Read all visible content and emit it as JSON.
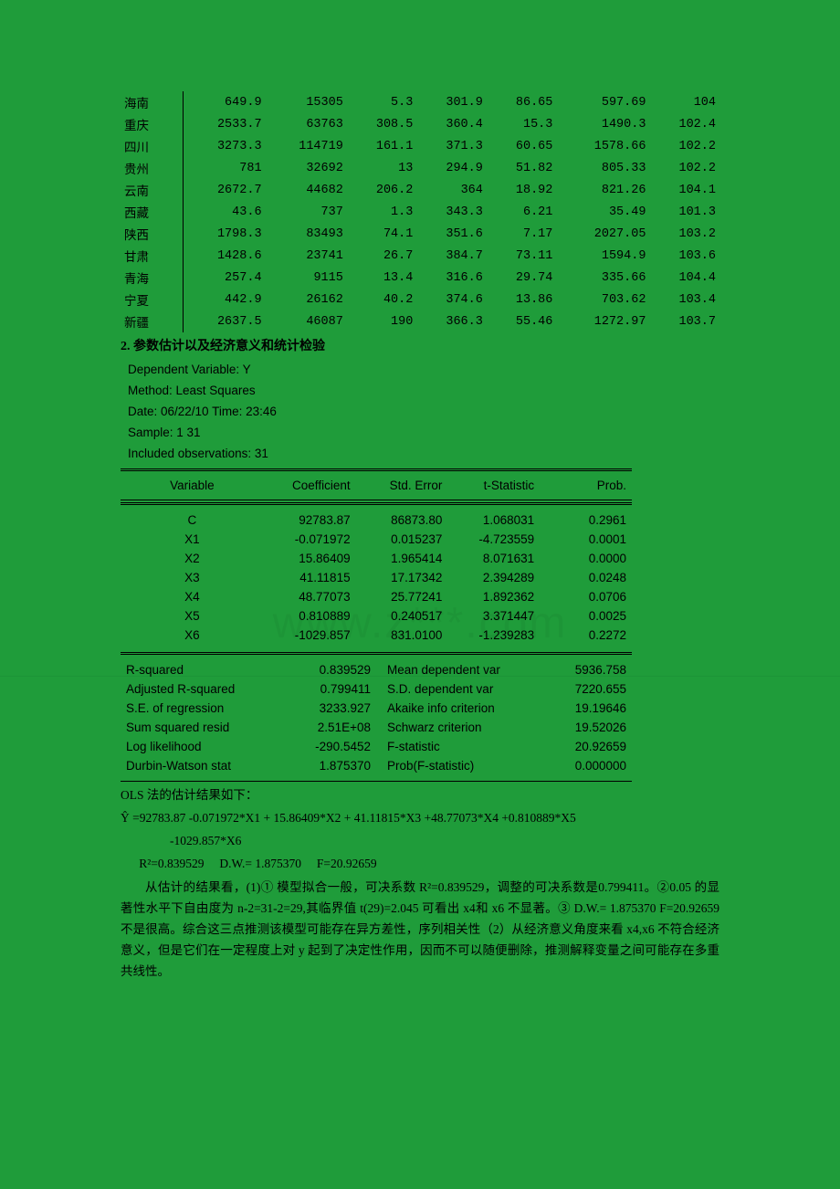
{
  "background_color": "#1f9c3a",
  "text_color": "#000000",
  "data_table": {
    "rows": [
      {
        "prov": "海南",
        "c1": "649.9",
        "c2": "15305",
        "c3": "5.3",
        "c4": "301.9",
        "c5": "86.65",
        "c6": "597.69",
        "c7": "104"
      },
      {
        "prov": "重庆",
        "c1": "2533.7",
        "c2": "63763",
        "c3": "308.5",
        "c4": "360.4",
        "c5": "15.3",
        "c6": "1490.3",
        "c7": "102.4"
      },
      {
        "prov": "四川",
        "c1": "3273.3",
        "c2": "114719",
        "c3": "161.1",
        "c4": "371.3",
        "c5": "60.65",
        "c6": "1578.66",
        "c7": "102.2"
      },
      {
        "prov": "贵州",
        "c1": "781",
        "c2": "32692",
        "c3": "13",
        "c4": "294.9",
        "c5": "51.82",
        "c6": "805.33",
        "c7": "102.2"
      },
      {
        "prov": "云南",
        "c1": "2672.7",
        "c2": "44682",
        "c3": "206.2",
        "c4": "364",
        "c5": "18.92",
        "c6": "821.26",
        "c7": "104.1"
      },
      {
        "prov": "西藏",
        "c1": "43.6",
        "c2": "737",
        "c3": "1.3",
        "c4": "343.3",
        "c5": "6.21",
        "c6": "35.49",
        "c7": "101.3"
      },
      {
        "prov": "陕西",
        "c1": "1798.3",
        "c2": "83493",
        "c3": "74.1",
        "c4": "351.6",
        "c5": "7.17",
        "c6": "2027.05",
        "c7": "103.2"
      },
      {
        "prov": "甘肃",
        "c1": "1428.6",
        "c2": "23741",
        "c3": "26.7",
        "c4": "384.7",
        "c5": "73.11",
        "c6": "1594.9",
        "c7": "103.6"
      },
      {
        "prov": "青海",
        "c1": "257.4",
        "c2": "9115",
        "c3": "13.4",
        "c4": "316.6",
        "c5": "29.74",
        "c6": "335.66",
        "c7": "104.4"
      },
      {
        "prov": "宁夏",
        "c1": "442.9",
        "c2": "26162",
        "c3": "40.2",
        "c4": "374.6",
        "c5": "13.86",
        "c6": "703.62",
        "c7": "103.4"
      },
      {
        "prov": "新疆",
        "c1": "2637.5",
        "c2": "46087",
        "c3": "190",
        "c4": "366.3",
        "c5": "55.46",
        "c6": "1272.97",
        "c7": "103.7"
      }
    ]
  },
  "section2_title": "2.  参数估计以及经济意义和统计检验",
  "reg_header": {
    "depvar": "Dependent Variable: Y",
    "method": "Method: Least Squares",
    "datetime": "Date: 06/22/10    Time: 23:46",
    "sample": "Sample: 1 31",
    "obs": "Included observations: 31"
  },
  "coef_header": [
    "Variable",
    "Coefficient",
    "Std. Error",
    "t-Statistic",
    "Prob."
  ],
  "coef_rows": [
    {
      "v": "C",
      "coef": "92783.87",
      "se": "86873.80",
      "t": "1.068031",
      "p": "0.2961"
    },
    {
      "v": "X1",
      "coef": "-0.071972",
      "se": "0.015237",
      "t": "-4.723559",
      "p": "0.0001"
    },
    {
      "v": "X2",
      "coef": "15.86409",
      "se": "1.965414",
      "t": "8.071631",
      "p": "0.0000"
    },
    {
      "v": "X3",
      "coef": "41.11815",
      "se": "17.17342",
      "t": "2.394289",
      "p": "0.0248"
    },
    {
      "v": "X4",
      "coef": "48.77073",
      "se": "25.77241",
      "t": "1.892362",
      "p": "0.0706"
    },
    {
      "v": "X5",
      "coef": "0.810889",
      "se": "0.240517",
      "t": "3.371447",
      "p": "0.0025"
    },
    {
      "v": "X6",
      "coef": "-1029.857",
      "se": "831.0100",
      "t": "-1.239283",
      "p": "0.2272"
    }
  ],
  "stats_rows": [
    {
      "a": "R-squared",
      "av": "0.839529",
      "b": "Mean dependent var",
      "bv": "5936.758"
    },
    {
      "a": "Adjusted R-squared",
      "av": "0.799411",
      "b": "S.D. dependent var",
      "bv": "7220.655"
    },
    {
      "a": "S.E. of regression",
      "av": "3233.927",
      "b": "Akaike info criterion",
      "bv": "19.19646"
    },
    {
      "a": "Sum squared resid",
      "av": "2.51E+08",
      "b": "Schwarz criterion",
      "bv": "19.52026"
    },
    {
      "a": "Log likelihood",
      "av": "-290.5452",
      "b": "F-statistic",
      "bv": "20.92659"
    },
    {
      "a": "Durbin-Watson stat",
      "av": "1.875370",
      "b": "Prob(F-statistic)",
      "bv": "0.000000"
    }
  ],
  "ols_intro": "OLS 法的估计结果如下：",
  "eq1": "Ŷ =92783.87 -0.071972*X1 + 15.86409*X2 + 41.11815*X3 +48.77073*X4 +0.810889*X5",
  "eq2": "                -1029.857*X6",
  "eq3": "      R²=0.839529     D.W.= 1.875370     F=20.92659",
  "para": "从估计的结果看，(1)① 模型拟合一般，可决系数 R²=0.839529，调整的可决系数是0.799411。②0.05 的显著性水平下自由度为 n-2=31-2=29,其临界值 t(29)=2.045 可看出 x4和 x6 不显著。③ D.W.= 1.875370    F=20.92659  不是很高。综合这三点推测该模型可能存在异方差性，序列相关性（2）从经济意义角度来看 x4,x6 不符合经济意义，但是它们在一定程度上对 y 起到了决定性作用，因而不可以随便删除，推测解释变量之间可能存在多重共线性。"
}
